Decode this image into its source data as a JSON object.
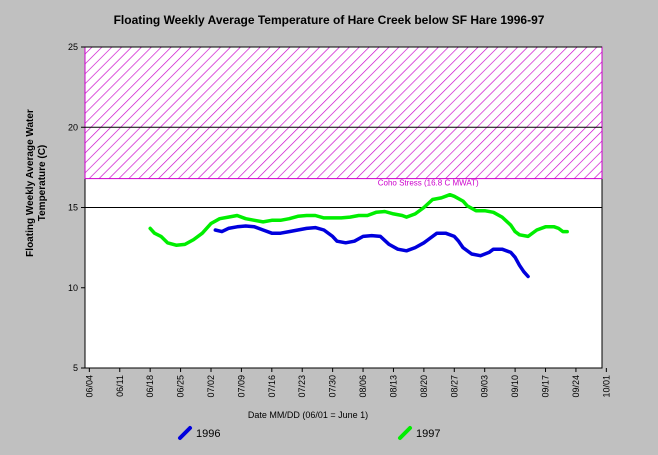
{
  "chart_data": {
    "type": "line",
    "title": "Floating Weekly Average Temperature of Hare Creek below SF Hare 1996-97",
    "ylabel_line1": "Floating Weekly Average Water",
    "ylabel_line2": "Temperature (C)",
    "xlabel": "Date MM/DD (06/01 = June 1)",
    "ylim": [
      5,
      25
    ],
    "yticks": [
      "5",
      "10",
      "15",
      "20",
      "25"
    ],
    "xlim_days": [
      3,
      122
    ],
    "xticks": [
      "06/04",
      "06/11",
      "06/18",
      "06/25",
      "07/02",
      "07/09",
      "07/16",
      "07/23",
      "07/30",
      "08/06",
      "08/13",
      "08/20",
      "08/27",
      "09/03",
      "09/10",
      "09/17",
      "09/24",
      "10/01"
    ],
    "grid_y": [
      15,
      20,
      25
    ],
    "threshold": {
      "label": "Coho Stress (16.8 C MWAT)",
      "y_low": 16.8,
      "y_high": 25,
      "color": "#cc00cc"
    },
    "series": [
      {
        "name": "1996",
        "color": "#0000dd",
        "points": [
          [
            33,
            13.6
          ],
          [
            34.5,
            13.5
          ],
          [
            36,
            13.7
          ],
          [
            38,
            13.8
          ],
          [
            40,
            13.85
          ],
          [
            42,
            13.8
          ],
          [
            44,
            13.6
          ],
          [
            46,
            13.4
          ],
          [
            48,
            13.4
          ],
          [
            50,
            13.5
          ],
          [
            52,
            13.6
          ],
          [
            54,
            13.7
          ],
          [
            56,
            13.75
          ],
          [
            58,
            13.6
          ],
          [
            60,
            13.2
          ],
          [
            61,
            12.9
          ],
          [
            63,
            12.8
          ],
          [
            65,
            12.9
          ],
          [
            67,
            13.2
          ],
          [
            69,
            13.25
          ],
          [
            71,
            13.2
          ],
          [
            73,
            12.7
          ],
          [
            75,
            12.4
          ],
          [
            77,
            12.3
          ],
          [
            79,
            12.5
          ],
          [
            81,
            12.8
          ],
          [
            82,
            13.0
          ],
          [
            84,
            13.4
          ],
          [
            86,
            13.4
          ],
          [
            88,
            13.2
          ],
          [
            89,
            12.9
          ],
          [
            90,
            12.5
          ],
          [
            92,
            12.1
          ],
          [
            94,
            12.0
          ],
          [
            96,
            12.2
          ],
          [
            97,
            12.4
          ],
          [
            99,
            12.4
          ],
          [
            101,
            12.2
          ],
          [
            102,
            11.9
          ],
          [
            103,
            11.4
          ],
          [
            104,
            11.0
          ],
          [
            105,
            10.7
          ]
        ]
      },
      {
        "name": "1997",
        "color": "#00ee00",
        "points": [
          [
            18,
            13.7
          ],
          [
            19,
            13.4
          ],
          [
            20.5,
            13.2
          ],
          [
            22,
            12.8
          ],
          [
            24,
            12.65
          ],
          [
            26,
            12.7
          ],
          [
            28,
            13.0
          ],
          [
            30,
            13.4
          ],
          [
            32,
            14.0
          ],
          [
            34,
            14.3
          ],
          [
            36,
            14.4
          ],
          [
            38,
            14.5
          ],
          [
            40,
            14.3
          ],
          [
            42,
            14.2
          ],
          [
            44,
            14.1
          ],
          [
            46,
            14.2
          ],
          [
            48,
            14.2
          ],
          [
            50,
            14.3
          ],
          [
            52,
            14.45
          ],
          [
            54,
            14.5
          ],
          [
            56,
            14.5
          ],
          [
            58,
            14.35
          ],
          [
            60,
            14.35
          ],
          [
            62,
            14.35
          ],
          [
            64,
            14.4
          ],
          [
            66,
            14.5
          ],
          [
            68,
            14.5
          ],
          [
            70,
            14.7
          ],
          [
            72,
            14.75
          ],
          [
            74,
            14.6
          ],
          [
            76,
            14.5
          ],
          [
            77,
            14.4
          ],
          [
            79,
            14.6
          ],
          [
            81,
            15.0
          ],
          [
            83,
            15.5
          ],
          [
            85,
            15.6
          ],
          [
            87,
            15.8
          ],
          [
            88,
            15.7
          ],
          [
            90,
            15.4
          ],
          [
            91,
            15.1
          ],
          [
            93,
            14.8
          ],
          [
            95,
            14.8
          ],
          [
            97,
            14.7
          ],
          [
            99,
            14.4
          ],
          [
            101,
            13.9
          ],
          [
            102,
            13.5
          ],
          [
            103,
            13.3
          ],
          [
            105,
            13.2
          ],
          [
            107,
            13.6
          ],
          [
            109,
            13.8
          ],
          [
            111,
            13.8
          ],
          [
            112,
            13.7
          ],
          [
            113,
            13.5
          ],
          [
            114,
            13.5
          ]
        ]
      }
    ]
  }
}
